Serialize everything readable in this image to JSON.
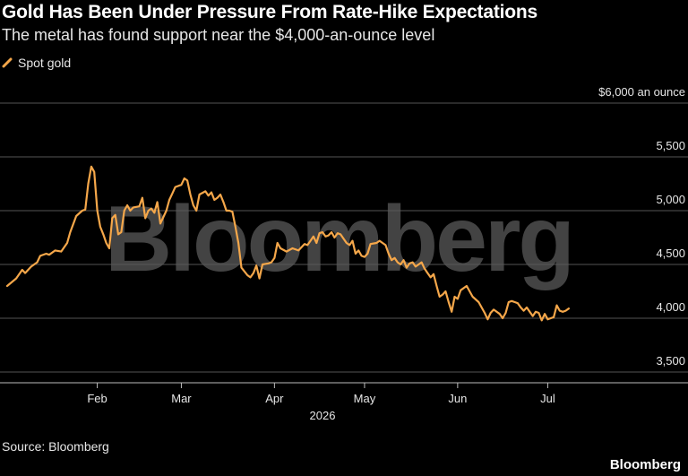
{
  "header": {
    "title": "Gold Has Been Under Pressure From Rate-Hike Expectations",
    "subtitle": "The metal has found support near the $4,000-an-ounce level"
  },
  "footer": {
    "source": "Source: Bloomberg",
    "brand": "Bloomberg"
  },
  "watermark": "Bloomberg",
  "colors": {
    "background": "#000000",
    "line": "#f5a74a",
    "grid": "#555555",
    "text": "#e6e6e6"
  },
  "chart_data": {
    "type": "line",
    "title": "Gold Has Been Under Pressure From Rate-Hike Expectations",
    "subtitle": "The metal has found support near the $4,000-an-ounce level",
    "xlabel": "2026",
    "ylabel": "$6,000 an ounce",
    "ylim": [
      3400,
      6000
    ],
    "grid": true,
    "legend_position": "top-left",
    "y_ticks": [
      {
        "value": 6000,
        "label": "$6,000 an ounce"
      },
      {
        "value": 5500,
        "label": "5,500"
      },
      {
        "value": 5000,
        "label": "5,000"
      },
      {
        "value": 4500,
        "label": "4,500"
      },
      {
        "value": 4000,
        "label": "4,000"
      },
      {
        "value": 3500,
        "label": "3,500"
      }
    ],
    "x_ticks": [
      {
        "date": "2026-02-01",
        "label": "Feb"
      },
      {
        "date": "2026-03-01",
        "label": "Mar"
      },
      {
        "date": "2026-04-01",
        "label": "Apr"
      },
      {
        "date": "2026-05-01",
        "label": "May"
      },
      {
        "date": "2026-06-01",
        "label": "Jun"
      },
      {
        "date": "2026-07-01",
        "label": "Jul"
      }
    ],
    "x_range": [
      "2026-01-02",
      "2026-07-31"
    ],
    "series": [
      {
        "name": "Spot gold",
        "color": "#f5a74a",
        "points": [
          [
            "2026-01-02",
            4300
          ],
          [
            "2026-01-05",
            4370
          ],
          [
            "2026-01-07",
            4450
          ],
          [
            "2026-01-08",
            4420
          ],
          [
            "2026-01-10",
            4480
          ],
          [
            "2026-01-12",
            4520
          ],
          [
            "2026-01-13",
            4580
          ],
          [
            "2026-01-15",
            4600
          ],
          [
            "2026-01-16",
            4590
          ],
          [
            "2026-01-18",
            4630
          ],
          [
            "2026-01-20",
            4620
          ],
          [
            "2026-01-22",
            4700
          ],
          [
            "2026-01-23",
            4800
          ],
          [
            "2026-01-25",
            4950
          ],
          [
            "2026-01-27",
            5000
          ],
          [
            "2026-01-28",
            5010
          ],
          [
            "2026-01-29",
            5250
          ],
          [
            "2026-01-30",
            5410
          ],
          [
            "2026-01-31",
            5360
          ],
          [
            "2026-02-01",
            5000
          ],
          [
            "2026-02-02",
            4850
          ],
          [
            "2026-02-03",
            4780
          ],
          [
            "2026-02-04",
            4700
          ],
          [
            "2026-02-05",
            4650
          ],
          [
            "2026-02-06",
            4930
          ],
          [
            "2026-02-07",
            4960
          ],
          [
            "2026-02-08",
            4780
          ],
          [
            "2026-02-09",
            4800
          ],
          [
            "2026-02-10",
            5000
          ],
          [
            "2026-02-11",
            5050
          ],
          [
            "2026-02-12",
            5000
          ],
          [
            "2026-02-13",
            5030
          ],
          [
            "2026-02-15",
            5040
          ],
          [
            "2026-02-16",
            5120
          ],
          [
            "2026-02-17",
            4930
          ],
          [
            "2026-02-18",
            5000
          ],
          [
            "2026-02-19",
            5020
          ],
          [
            "2026-02-20",
            4980
          ],
          [
            "2026-02-21",
            5080
          ],
          [
            "2026-02-22",
            4880
          ],
          [
            "2026-02-24",
            5000
          ],
          [
            "2026-02-25",
            5100
          ],
          [
            "2026-02-26",
            5160
          ],
          [
            "2026-02-27",
            5220
          ],
          [
            "2026-03-01",
            5240
          ],
          [
            "2026-03-02",
            5300
          ],
          [
            "2026-03-03",
            5280
          ],
          [
            "2026-03-04",
            5150
          ],
          [
            "2026-03-05",
            5050
          ],
          [
            "2026-03-06",
            5000
          ],
          [
            "2026-03-07",
            5150
          ],
          [
            "2026-03-09",
            5180
          ],
          [
            "2026-03-10",
            5140
          ],
          [
            "2026-03-11",
            5170
          ],
          [
            "2026-03-12",
            5100
          ],
          [
            "2026-03-13",
            5120
          ],
          [
            "2026-03-14",
            5150
          ],
          [
            "2026-03-15",
            5080
          ],
          [
            "2026-03-16",
            5000
          ],
          [
            "2026-03-17",
            5000
          ],
          [
            "2026-03-18",
            4990
          ],
          [
            "2026-03-19",
            4850
          ],
          [
            "2026-03-20",
            4700
          ],
          [
            "2026-03-21",
            4470
          ],
          [
            "2026-03-23",
            4400
          ],
          [
            "2026-03-24",
            4380
          ],
          [
            "2026-03-25",
            4420
          ],
          [
            "2026-03-26",
            4490
          ],
          [
            "2026-03-27",
            4370
          ],
          [
            "2026-03-28",
            4500
          ],
          [
            "2026-03-30",
            4510
          ],
          [
            "2026-03-31",
            4520
          ],
          [
            "2026-04-01",
            4560
          ],
          [
            "2026-04-02",
            4700
          ],
          [
            "2026-04-03",
            4650
          ],
          [
            "2026-04-05",
            4620
          ],
          [
            "2026-04-07",
            4650
          ],
          [
            "2026-04-09",
            4630
          ],
          [
            "2026-04-11",
            4690
          ],
          [
            "2026-04-12",
            4680
          ],
          [
            "2026-04-13",
            4720
          ],
          [
            "2026-04-14",
            4760
          ],
          [
            "2026-04-15",
            4700
          ],
          [
            "2026-04-16",
            4790
          ],
          [
            "2026-04-17",
            4800
          ],
          [
            "2026-04-18",
            4760
          ],
          [
            "2026-04-19",
            4770
          ],
          [
            "2026-04-20",
            4800
          ],
          [
            "2026-04-21",
            4750
          ],
          [
            "2026-04-22",
            4790
          ],
          [
            "2026-04-23",
            4780
          ],
          [
            "2026-04-25",
            4700
          ],
          [
            "2026-04-26",
            4680
          ],
          [
            "2026-04-27",
            4720
          ],
          [
            "2026-04-28",
            4600
          ],
          [
            "2026-04-29",
            4630
          ],
          [
            "2026-04-30",
            4580
          ],
          [
            "2026-05-01",
            4570
          ],
          [
            "2026-05-02",
            4600
          ],
          [
            "2026-05-03",
            4690
          ],
          [
            "2026-05-05",
            4700
          ],
          [
            "2026-05-06",
            4720
          ],
          [
            "2026-05-07",
            4700
          ],
          [
            "2026-05-08",
            4680
          ],
          [
            "2026-05-09",
            4600
          ],
          [
            "2026-05-10",
            4540
          ],
          [
            "2026-05-11",
            4560
          ],
          [
            "2026-05-12",
            4520
          ],
          [
            "2026-05-13",
            4500
          ],
          [
            "2026-05-14",
            4540
          ],
          [
            "2026-05-15",
            4470
          ],
          [
            "2026-05-16",
            4510
          ],
          [
            "2026-05-17",
            4520
          ],
          [
            "2026-05-18",
            4480
          ],
          [
            "2026-05-19",
            4500
          ],
          [
            "2026-05-20",
            4520
          ],
          [
            "2026-05-21",
            4460
          ],
          [
            "2026-05-22",
            4420
          ],
          [
            "2026-05-23",
            4380
          ],
          [
            "2026-05-24",
            4410
          ],
          [
            "2026-05-25",
            4300
          ],
          [
            "2026-05-26",
            4200
          ],
          [
            "2026-05-27",
            4220
          ],
          [
            "2026-05-28",
            4250
          ],
          [
            "2026-05-29",
            4150
          ],
          [
            "2026-05-30",
            4060
          ],
          [
            "2026-05-31",
            4200
          ],
          [
            "2026-06-01",
            4180
          ],
          [
            "2026-06-02",
            4260
          ],
          [
            "2026-06-04",
            4300
          ],
          [
            "2026-06-06",
            4200
          ],
          [
            "2026-06-08",
            4150
          ],
          [
            "2026-06-10",
            4050
          ],
          [
            "2026-06-11",
            3990
          ],
          [
            "2026-06-12",
            4050
          ],
          [
            "2026-06-13",
            4080
          ],
          [
            "2026-06-15",
            4040
          ],
          [
            "2026-06-16",
            4000
          ],
          [
            "2026-06-17",
            4050
          ],
          [
            "2026-06-18",
            4150
          ],
          [
            "2026-06-19",
            4160
          ],
          [
            "2026-06-20",
            4150
          ],
          [
            "2026-06-21",
            4140
          ],
          [
            "2026-06-22",
            4100
          ],
          [
            "2026-06-23",
            4070
          ],
          [
            "2026-06-24",
            4100
          ],
          [
            "2026-06-25",
            4060
          ],
          [
            "2026-06-26",
            4020
          ],
          [
            "2026-06-27",
            4060
          ],
          [
            "2026-06-28",
            4050
          ],
          [
            "2026-06-29",
            3980
          ],
          [
            "2026-06-30",
            4040
          ],
          [
            "2026-07-01",
            3990
          ],
          [
            "2026-07-02",
            4000
          ],
          [
            "2026-07-03",
            4010
          ],
          [
            "2026-07-04",
            4120
          ],
          [
            "2026-07-05",
            4070
          ],
          [
            "2026-07-06",
            4060
          ],
          [
            "2026-07-07",
            4070
          ],
          [
            "2026-07-08",
            4090
          ]
        ]
      }
    ]
  }
}
